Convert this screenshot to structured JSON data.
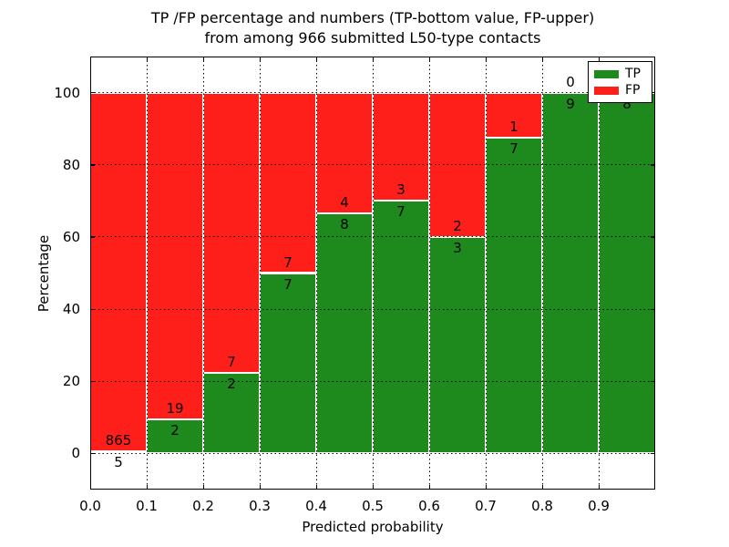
{
  "title": {
    "line1": "TP /FP percentage and numbers (TP-bottom value, FP-upper)",
    "line2": "from among 966 submitted L50-type contacts"
  },
  "axes": {
    "xlabel": "Predicted probability",
    "ylabel": "Percentage",
    "xtick_labels": [
      "0.0",
      "0.1",
      "0.2",
      "0.3",
      "0.4",
      "0.5",
      "0.6",
      "0.7",
      "0.8",
      "0.9"
    ],
    "ytick_labels": [
      "0",
      "20",
      "40",
      "60",
      "80",
      "100"
    ],
    "ytick_values": [
      0,
      20,
      40,
      60,
      80,
      100
    ],
    "xlim": [
      0.0,
      1.0
    ],
    "ylim": [
      -10,
      110
    ],
    "grid_style": "dotted"
  },
  "legend": {
    "position": "upper-right",
    "items": [
      {
        "label": "TP",
        "color": "#1e8a1e"
      },
      {
        "label": "FP",
        "color": "#ff1f1a"
      }
    ]
  },
  "chart_data": {
    "type": "bar",
    "stacked": true,
    "normalized": "each bin stacks to 100%",
    "total_contacts": 966,
    "bins": [
      "0.0-0.1",
      "0.1-0.2",
      "0.2-0.3",
      "0.3-0.4",
      "0.4-0.5",
      "0.5-0.6",
      "0.6-0.7",
      "0.7-0.8",
      "0.8-0.9",
      "0.9-1.0"
    ],
    "bin_start": [
      0.0,
      0.1,
      0.2,
      0.3,
      0.4,
      0.5,
      0.6,
      0.7,
      0.8,
      0.9
    ],
    "bin_width": 0.1,
    "series": [
      {
        "name": "TP",
        "color": "#1e8a1e",
        "counts": [
          5,
          2,
          2,
          7,
          8,
          7,
          3,
          7,
          9,
          8
        ],
        "percent": [
          0.57,
          9.52,
          22.22,
          50.0,
          66.67,
          70.0,
          60.0,
          87.5,
          100.0,
          100.0
        ]
      },
      {
        "name": "FP",
        "color": "#ff1f1a",
        "counts": [
          865,
          19,
          7,
          7,
          4,
          3,
          2,
          1,
          0,
          0
        ],
        "percent": [
          99.43,
          90.48,
          77.78,
          50.0,
          33.33,
          30.0,
          40.0,
          12.5,
          0.0,
          0.0
        ]
      }
    ],
    "bar_edge_color": "#ffffff",
    "annotation_rule": "FP count printed just above TP/FP boundary, TP count just below it"
  }
}
